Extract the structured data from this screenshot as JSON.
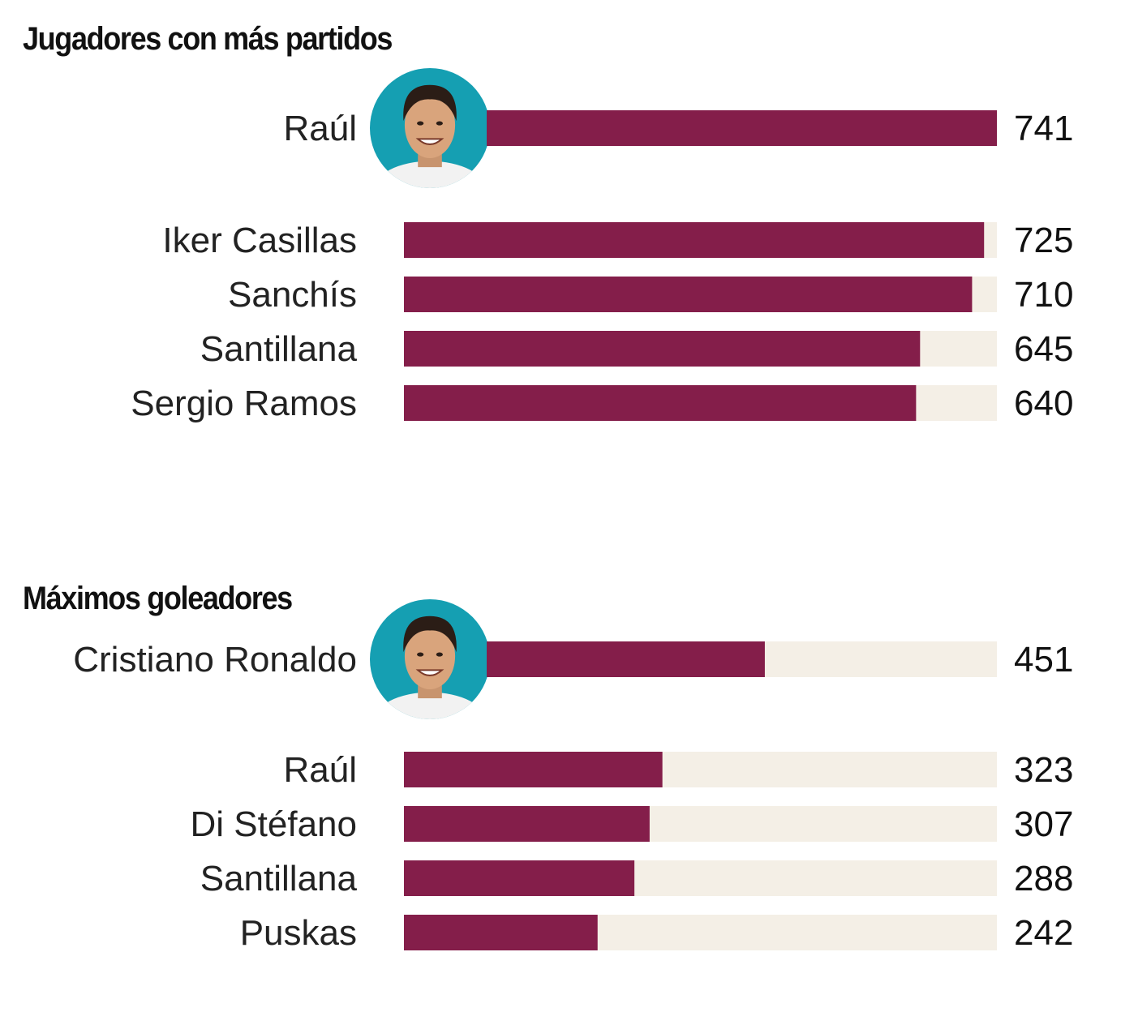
{
  "colors": {
    "bar": "#841e4a",
    "track": "#f4efe6",
    "avatar_ring": "#159fb2",
    "text": "#222222"
  },
  "chart_data": [
    {
      "type": "bar",
      "orientation": "horizontal",
      "title": "Jugadores con más partidos",
      "categories": [
        "Raúl",
        "Iker Casillas",
        "Sanchís",
        "Santillana",
        "Sergio Ramos"
      ],
      "values": [
        741,
        725,
        710,
        645,
        640
      ],
      "xlim": [
        0,
        741
      ],
      "grid": false,
      "highlight": {
        "category": "Raúl",
        "avatar": "player-photo"
      }
    },
    {
      "type": "bar",
      "orientation": "horizontal",
      "title": "Máximos goleadores",
      "categories": [
        "Cristiano Ronaldo",
        "Raúl",
        "Di Stéfano",
        "Santillana",
        "Puskas"
      ],
      "values": [
        451,
        323,
        307,
        288,
        242
      ],
      "xlim": [
        0,
        741
      ],
      "grid": false,
      "highlight": {
        "category": "Cristiano Ronaldo",
        "avatar": "player-photo"
      }
    }
  ]
}
